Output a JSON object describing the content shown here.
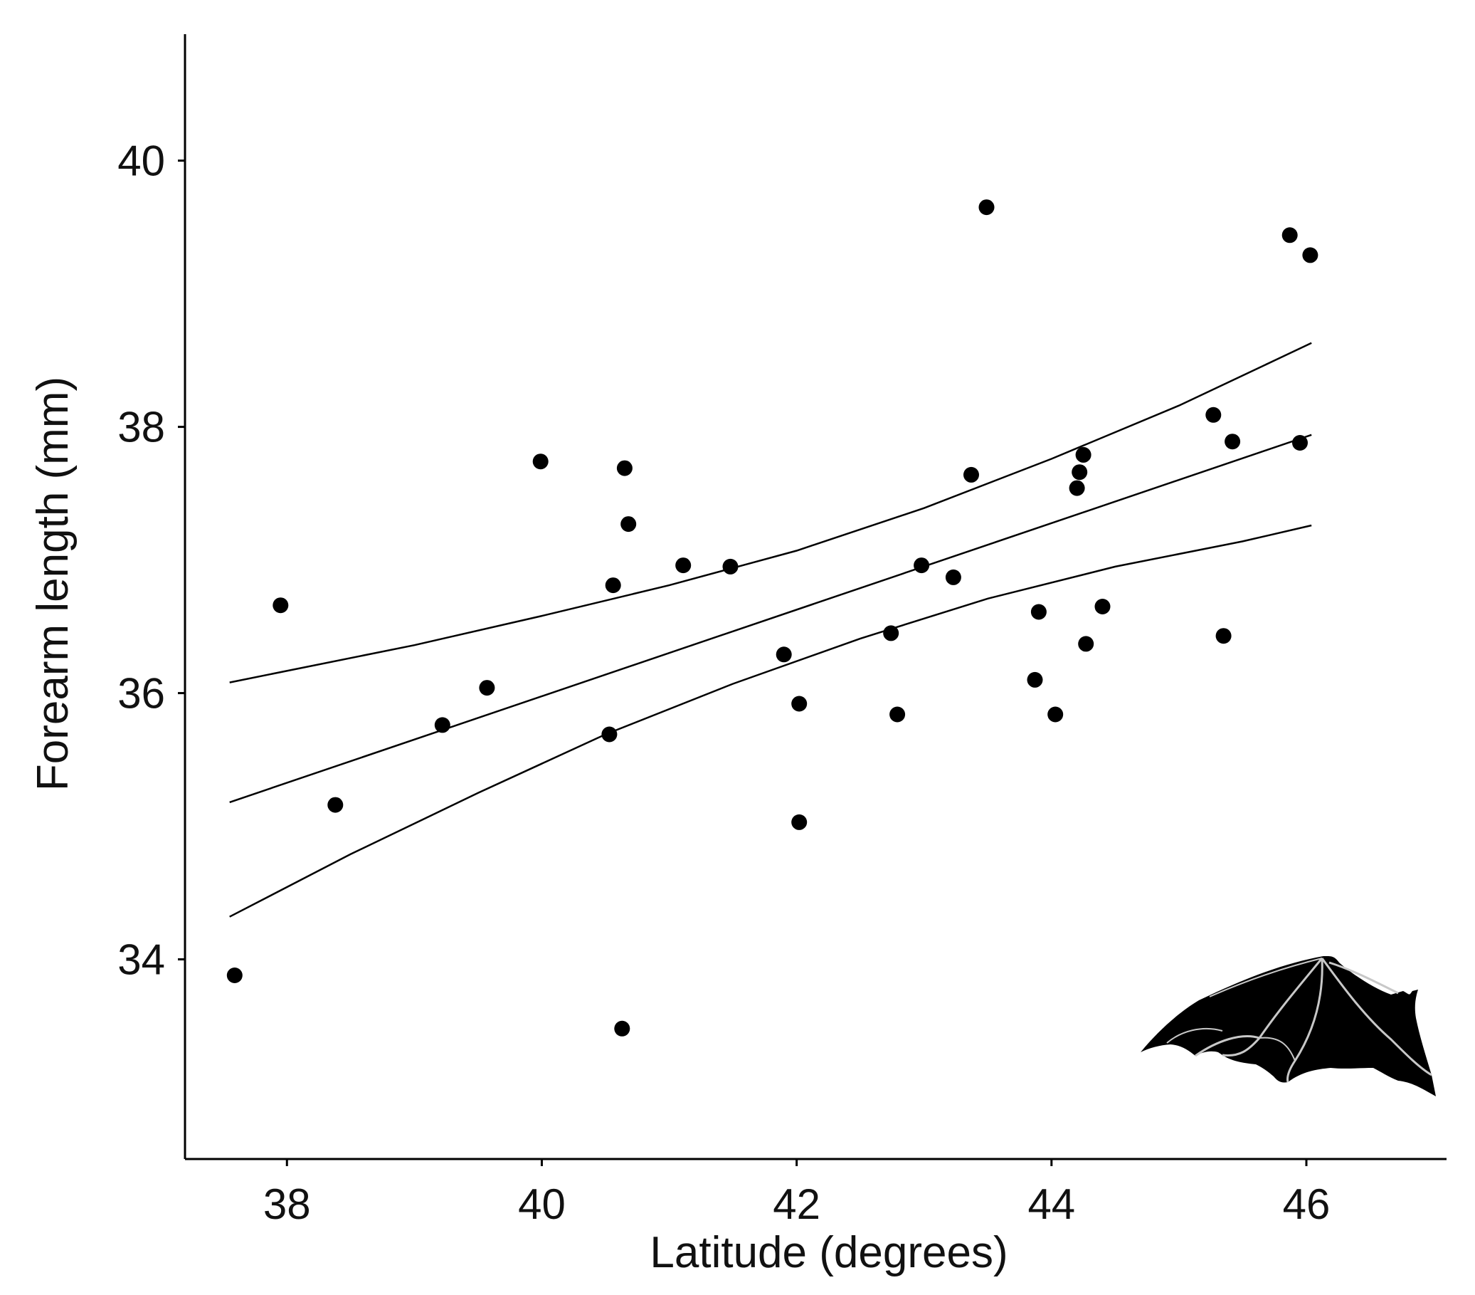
{
  "chart_data": {
    "type": "scatter",
    "xlabel": "Latitude (degrees)",
    "ylabel": "Forearm length (mm)",
    "xlim": [
      37.2,
      47.1
    ],
    "ylim": [
      32.5,
      40.95
    ],
    "xticks": [
      38,
      40,
      42,
      44,
      46
    ],
    "yticks": [
      34,
      36,
      38,
      40
    ],
    "grid": false,
    "legend": "none",
    "colors": {
      "points": "#000000",
      "lines": "#000000",
      "axes": "#000000"
    },
    "points": [
      {
        "x": 37.59,
        "y": 33.88
      },
      {
        "x": 37.95,
        "y": 36.66
      },
      {
        "x": 38.38,
        "y": 35.16
      },
      {
        "x": 39.22,
        "y": 35.76
      },
      {
        "x": 39.57,
        "y": 36.04
      },
      {
        "x": 39.99,
        "y": 37.74
      },
      {
        "x": 40.53,
        "y": 35.69
      },
      {
        "x": 40.56,
        "y": 36.81
      },
      {
        "x": 40.65,
        "y": 37.69
      },
      {
        "x": 40.68,
        "y": 37.27
      },
      {
        "x": 40.63,
        "y": 33.48
      },
      {
        "x": 41.11,
        "y": 36.96
      },
      {
        "x": 41.48,
        "y": 36.95
      },
      {
        "x": 41.9,
        "y": 36.29
      },
      {
        "x": 42.02,
        "y": 35.92
      },
      {
        "x": 42.02,
        "y": 35.03
      },
      {
        "x": 42.74,
        "y": 36.45
      },
      {
        "x": 42.79,
        "y": 35.84
      },
      {
        "x": 42.98,
        "y": 36.96
      },
      {
        "x": 43.23,
        "y": 36.87
      },
      {
        "x": 43.37,
        "y": 37.64
      },
      {
        "x": 43.49,
        "y": 39.65
      },
      {
        "x": 43.87,
        "y": 36.1
      },
      {
        "x": 43.9,
        "y": 36.61
      },
      {
        "x": 44.03,
        "y": 35.84
      },
      {
        "x": 44.2,
        "y": 37.54
      },
      {
        "x": 44.22,
        "y": 37.66
      },
      {
        "x": 44.25,
        "y": 37.79
      },
      {
        "x": 44.27,
        "y": 36.37
      },
      {
        "x": 44.4,
        "y": 36.65
      },
      {
        "x": 45.27,
        "y": 38.09
      },
      {
        "x": 45.35,
        "y": 36.43
      },
      {
        "x": 45.42,
        "y": 37.89
      },
      {
        "x": 45.87,
        "y": 39.44
      },
      {
        "x": 45.95,
        "y": 37.88
      },
      {
        "x": 46.03,
        "y": 39.29
      }
    ],
    "lines": [
      {
        "role": "fit",
        "x": [
          37.55,
          46.04
        ],
        "y": [
          35.18,
          37.94
        ]
      },
      {
        "role": "upper-confidence",
        "x": [
          37.55,
          39.0,
          40.0,
          41.0,
          42.0,
          43.0,
          44.0,
          45.0,
          46.04
        ],
        "y": [
          36.08,
          36.36,
          36.58,
          36.81,
          37.07,
          37.39,
          37.76,
          38.16,
          38.63
        ]
      },
      {
        "role": "lower-confidence",
        "x": [
          37.55,
          38.5,
          39.5,
          40.5,
          41.5,
          42.5,
          43.5,
          44.5,
          45.5,
          46.04
        ],
        "y": [
          34.32,
          34.79,
          35.25,
          35.69,
          36.07,
          36.41,
          36.71,
          36.95,
          37.14,
          37.26
        ]
      }
    ],
    "icon": "bat-wing-silhouette"
  }
}
